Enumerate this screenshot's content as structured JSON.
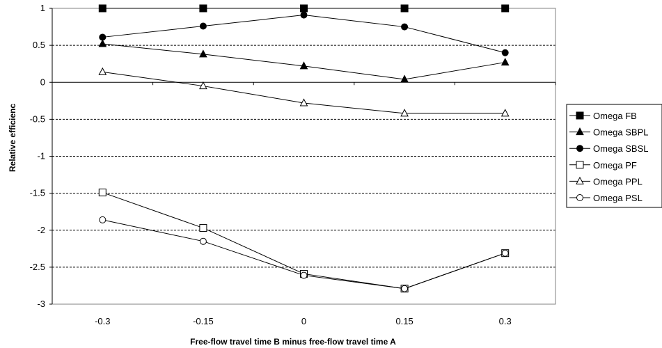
{
  "chart_data": {
    "type": "line",
    "title": "",
    "xlabel": "Free-flow travel time B minus free-flow travel time A",
    "ylabel": "Relative efficienc",
    "categories": [
      "-0.3",
      "-0.15",
      "0",
      "0.15",
      "0.3"
    ],
    "ylim": [
      -3,
      1
    ],
    "yticks": [
      "1",
      "0.5",
      "0",
      "-0.5",
      "-1",
      "-1.5",
      "-2",
      "-2.5",
      "-3"
    ],
    "grid": "horizontal dashed",
    "legend_position": "right",
    "series": [
      {
        "name": "Omega FB",
        "marker": "square",
        "filled": true,
        "values": [
          1,
          1,
          1,
          1,
          1
        ]
      },
      {
        "name": "Omega SBPL",
        "marker": "triangle",
        "filled": true,
        "values": [
          0.52,
          0.38,
          0.22,
          0.04,
          0.27
        ]
      },
      {
        "name": "Omega SBSL",
        "marker": "circle",
        "filled": true,
        "values": [
          0.61,
          0.76,
          0.91,
          0.75,
          0.4
        ]
      },
      {
        "name": "Omega PF",
        "marker": "square",
        "filled": false,
        "values": [
          -1.49,
          -1.97,
          -2.59,
          -2.79,
          -2.31
        ]
      },
      {
        "name": "Omega PPL",
        "marker": "triangle",
        "filled": false,
        "values": [
          0.14,
          -0.05,
          -0.28,
          -0.42,
          -0.42
        ]
      },
      {
        "name": "Omega PSL",
        "marker": "circle",
        "filled": false,
        "values": [
          -1.86,
          -2.15,
          -2.61,
          -2.79,
          -2.31
        ]
      }
    ]
  }
}
